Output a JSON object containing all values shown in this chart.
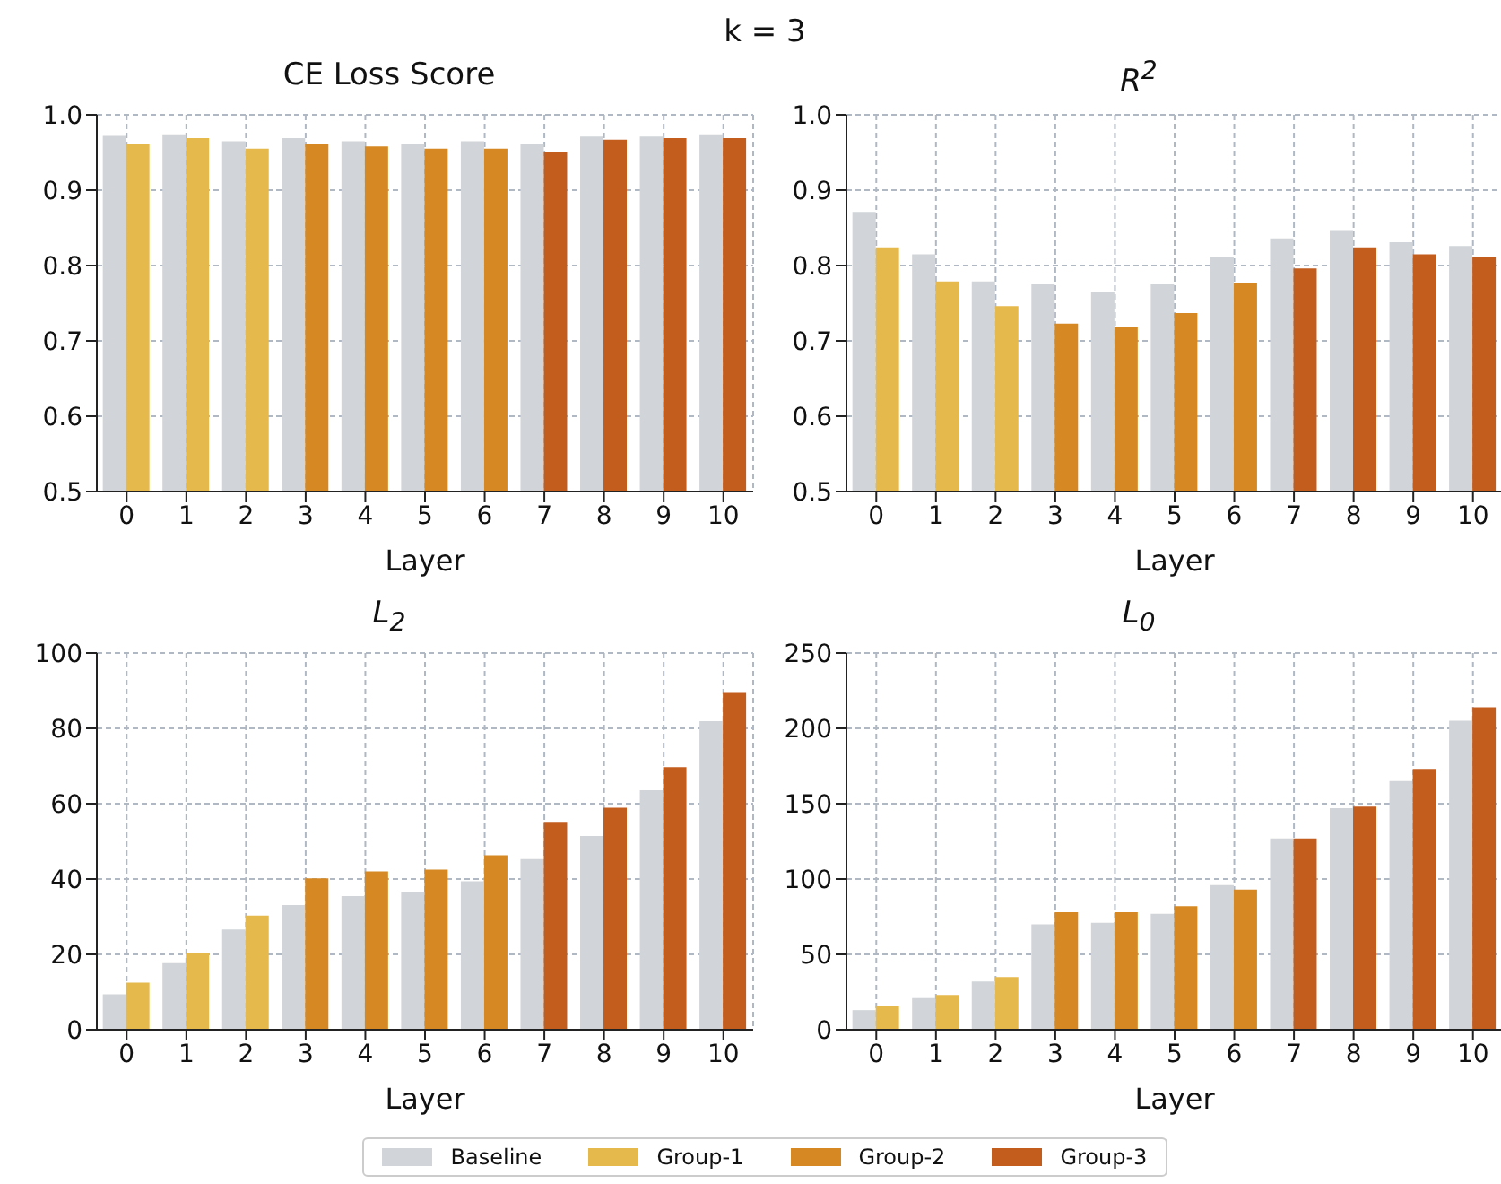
{
  "chart_data": [
    {
      "type": "bar",
      "title": "CE Loss Score",
      "subtitle": "k = 3",
      "xlabel": "Layer",
      "categories": [
        "0",
        "1",
        "2",
        "3",
        "4",
        "5",
        "6",
        "7",
        "8",
        "9",
        "10"
      ],
      "ylim": [
        0.5,
        1.0
      ],
      "yticks": [
        0.5,
        0.6,
        0.7,
        0.8,
        0.9,
        {
          "value": 1.0,
          "label": "1.0"
        }
      ],
      "grid": true,
      "legend": "bottom",
      "series": [
        {
          "name": "Baseline",
          "color": "#d1d4d8",
          "values": [
            0.972,
            0.974,
            0.965,
            0.969,
            0.965,
            0.962,
            0.965,
            0.962,
            0.971,
            0.971,
            0.974
          ]
        },
        {
          "name": "Group-1",
          "color": "#e6b94c",
          "values": [
            0.962,
            0.969,
            0.955,
            null,
            null,
            null,
            null,
            null,
            null,
            null,
            null
          ]
        },
        {
          "name": "Group-2",
          "color": "#d68923",
          "values": [
            null,
            null,
            null,
            0.962,
            0.958,
            0.955,
            0.955,
            null,
            null,
            null,
            null
          ]
        },
        {
          "name": "Group-3",
          "color": "#c35d1e",
          "values": [
            null,
            null,
            null,
            null,
            null,
            null,
            null,
            0.95,
            0.967,
            0.969,
            0.969
          ]
        }
      ]
    },
    {
      "type": "bar",
      "title": "R$^{2}$",
      "xlabel": "Layer",
      "categories": [
        "0",
        "1",
        "2",
        "3",
        "4",
        "5",
        "6",
        "7",
        "8",
        "9",
        "10"
      ],
      "ylim": [
        0.5,
        1.0
      ],
      "yticks": [
        0.5,
        0.6,
        0.7,
        0.8,
        0.9,
        {
          "value": 1.0,
          "label": "1.0"
        }
      ],
      "grid": true,
      "series": [
        {
          "name": "Baseline",
          "color": "#d1d4d8",
          "values": [
            0.871,
            0.815,
            0.779,
            0.775,
            0.765,
            0.775,
            0.812,
            0.836,
            0.847,
            0.831,
            0.826
          ]
        },
        {
          "name": "Group-1",
          "color": "#e6b94c",
          "values": [
            0.824,
            0.779,
            0.746,
            null,
            null,
            null,
            null,
            null,
            null,
            null,
            null
          ]
        },
        {
          "name": "Group-2",
          "color": "#d68923",
          "values": [
            null,
            null,
            null,
            0.723,
            0.718,
            0.737,
            0.777,
            null,
            null,
            null,
            null
          ]
        },
        {
          "name": "Group-3",
          "color": "#c35d1e",
          "values": [
            null,
            null,
            null,
            null,
            null,
            null,
            null,
            0.796,
            0.824,
            0.815,
            0.812
          ]
        }
      ]
    },
    {
      "type": "bar",
      "title": "L$_{2}$",
      "xlabel": "Layer",
      "categories": [
        "0",
        "1",
        "2",
        "3",
        "4",
        "5",
        "6",
        "7",
        "8",
        "9",
        "10"
      ],
      "ylim": [
        0,
        100
      ],
      "yticks": [
        0,
        20,
        40,
        60,
        80,
        100
      ],
      "grid": true,
      "series": [
        {
          "name": "Baseline",
          "color": "#d1d4d8",
          "values": [
            9.4,
            17.7,
            26.6,
            33.1,
            35.5,
            36.4,
            39.4,
            45.3,
            51.4,
            63.6,
            81.9
          ]
        },
        {
          "name": "Group-1",
          "color": "#e6b94c",
          "values": [
            12.5,
            20.5,
            30.3,
            null,
            null,
            null,
            null,
            null,
            null,
            null,
            null
          ]
        },
        {
          "name": "Group-2",
          "color": "#d68923",
          "values": [
            null,
            null,
            null,
            40.2,
            42.0,
            42.5,
            46.3,
            null,
            null,
            null,
            null
          ]
        },
        {
          "name": "Group-3",
          "color": "#c35d1e",
          "values": [
            null,
            null,
            null,
            null,
            null,
            null,
            null,
            55.2,
            58.9,
            69.7,
            89.4
          ]
        }
      ]
    },
    {
      "type": "bar",
      "title": "L$_{0}$",
      "xlabel": "Layer",
      "categories": [
        "0",
        "1",
        "2",
        "3",
        "4",
        "5",
        "6",
        "7",
        "8",
        "9",
        "10"
      ],
      "ylim": [
        0,
        250
      ],
      "yticks": [
        0,
        50,
        100,
        150,
        200,
        250
      ],
      "grid": true,
      "series": [
        {
          "name": "Baseline",
          "color": "#d1d4d8",
          "values": [
            13,
            21,
            32,
            70,
            71,
            77,
            96,
            127,
            147,
            165,
            205
          ]
        },
        {
          "name": "Group-1",
          "color": "#e6b94c",
          "values": [
            16,
            23,
            35,
            null,
            null,
            null,
            null,
            null,
            null,
            null,
            null
          ]
        },
        {
          "name": "Group-2",
          "color": "#d68923",
          "values": [
            null,
            null,
            null,
            78,
            78,
            82,
            93,
            null,
            null,
            null,
            null
          ]
        },
        {
          "name": "Group-3",
          "color": "#c35d1e",
          "values": [
            null,
            null,
            null,
            null,
            null,
            null,
            null,
            127,
            148,
            173,
            214
          ]
        }
      ]
    }
  ]
}
